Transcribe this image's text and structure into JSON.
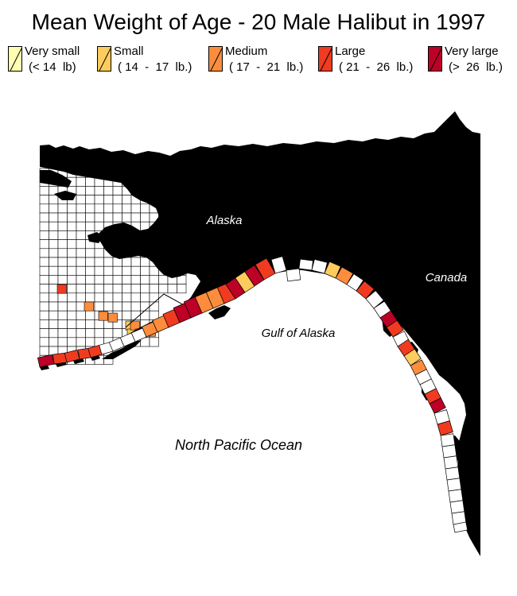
{
  "title": "Mean Weight of Age - 20 Male Halibut in 1997",
  "legend": {
    "items": [
      {
        "name": "Very small",
        "range": "(< 14  lb)",
        "color": "#ffffb2"
      },
      {
        "name": "Small",
        "range": "( 14  -  17  lb.)",
        "color": "#fecc5c"
      },
      {
        "name": "Medium",
        "range": "( 17  -  21  lb.)",
        "color": "#fd8d3c"
      },
      {
        "name": "Large",
        "range": "( 21  -  26  lb.)",
        "color": "#f03b20"
      },
      {
        "name": "Very large",
        "range": "(>  26  lb.)",
        "color": "#bd0026"
      }
    ]
  },
  "map": {
    "labels": {
      "alaska": "Alaska",
      "canada": "Canada",
      "gulf": "Gulf of Alaska",
      "ocean": "North Pacific Ocean"
    },
    "land_color": "#000000",
    "water_color": "#ffffff",
    "cell_outline_color": "#000000"
  }
}
